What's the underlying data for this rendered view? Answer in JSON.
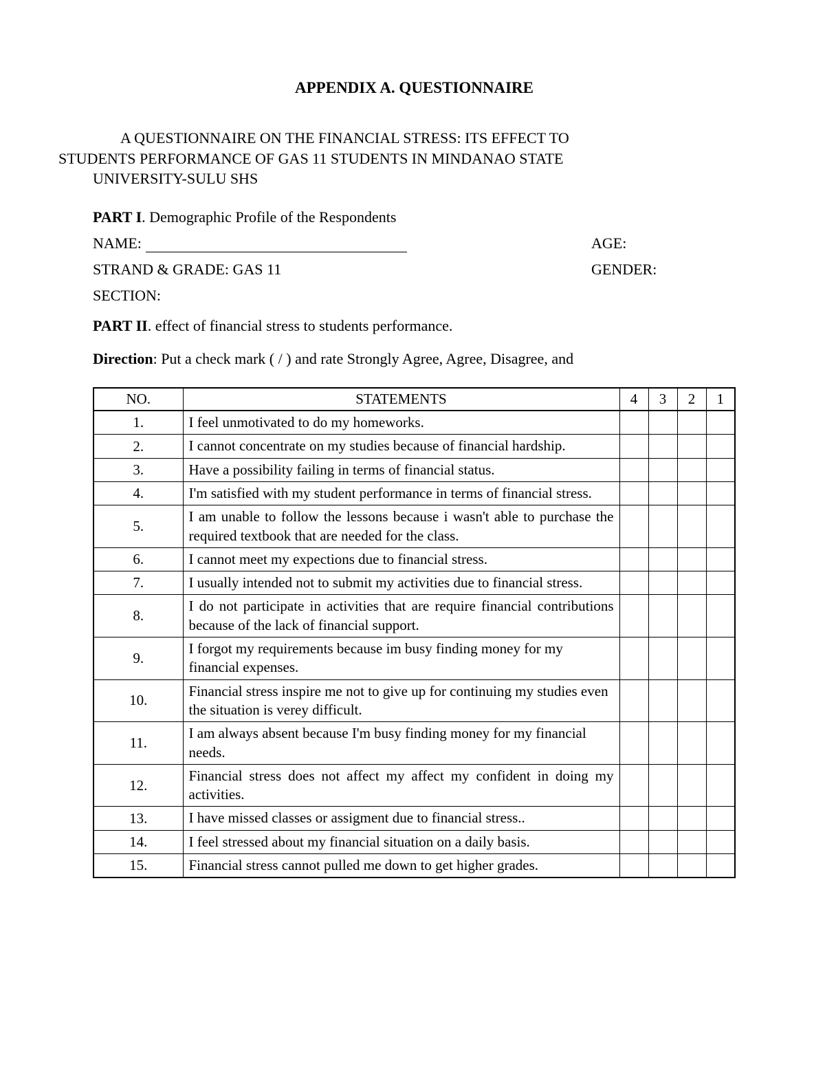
{
  "title": "APPENDIX A. QUESTIONNAIRE",
  "subtitle_line1": "A QUESTIONNAIRE ON THE FINANCIAL STRESS: ITS EFFECT TO",
  "subtitle_line2": "STUDENTS PERFORMANCE OF GAS 11 STUDENTS IN MINDANAO STATE",
  "subtitle_line3": "UNIVERSITY-SULU SHS",
  "part1_label": "PART I",
  "part1_text": ". Demographic Profile of the Respondents",
  "name_label": "NAME:",
  "age_label": "AGE:",
  "strand_label": "STRAND & GRADE: GAS 11",
  "gender_label": "GENDER:",
  "section_label": "SECTION:",
  "part2_label": "PART II",
  "part2_text": ". effect of financial stress to students performance.",
  "direction_label": "Direction",
  "direction_text": ": Put a check mark ( / ) and rate Strongly Agree, Agree,  Disagree, and",
  "table": {
    "columns": {
      "no": "NO.",
      "statements": "STATEMENTS",
      "r4": "4",
      "r3": "3",
      "r2": "2",
      "r1": "1"
    },
    "rows": [
      {
        "no": "1.",
        "stmt": "I feel unmotivated to do my homeworks.",
        "justify": false
      },
      {
        "no": "2.",
        "stmt": "I cannot concentrate on my studies because of financial hardship.",
        "justify": true
      },
      {
        "no": "3.",
        "stmt": "Have a possibility failing in terms of financial status.",
        "justify": false
      },
      {
        "no": "4.",
        "stmt": "I'm satisfied with my student performance in terms of financial stress.",
        "justify": false
      },
      {
        "no": "5.",
        "stmt": "I am unable to follow the lessons because i wasn't able to purchase the required textbook that are needed for the class.",
        "justify": true
      },
      {
        "no": "6.",
        "stmt": "I cannot meet  my expections due to financial stress.",
        "justify": false
      },
      {
        "no": "7.",
        "stmt": "I usually intended not to submit my activities due to financial stress.",
        "justify": false
      },
      {
        "no": "8.",
        "stmt": "I do not participate in activities that are require financial contributions because of the lack of financial support.",
        "justify": true
      },
      {
        "no": "9.",
        "stmt": "I forgot my requirements because im busy finding money for my financial expenses.",
        "justify": false
      },
      {
        "no": "10.",
        "stmt": "Financial stress inspire me not to give up for continuing my studies even the situation is verey difficult.",
        "justify": false
      },
      {
        "no": "11.",
        "stmt": "I am always absent because I'm busy finding money for my financial needs.",
        "justify": false
      },
      {
        "no": "12.",
        "stmt": "Financial stress does not affect my affect my confident in doing my activities.",
        "justify": true
      },
      {
        "no": "13.",
        "stmt": "I have missed classes or assigment due to financial stress..",
        "justify": true
      },
      {
        "no": "14.",
        "stmt": "I feel stressed about my financial situation on a daily basis.",
        "justify": false
      },
      {
        "no": "15.",
        "stmt": "Financial stress cannot pulled me down to get higher grades.",
        "justify": false
      }
    ]
  }
}
